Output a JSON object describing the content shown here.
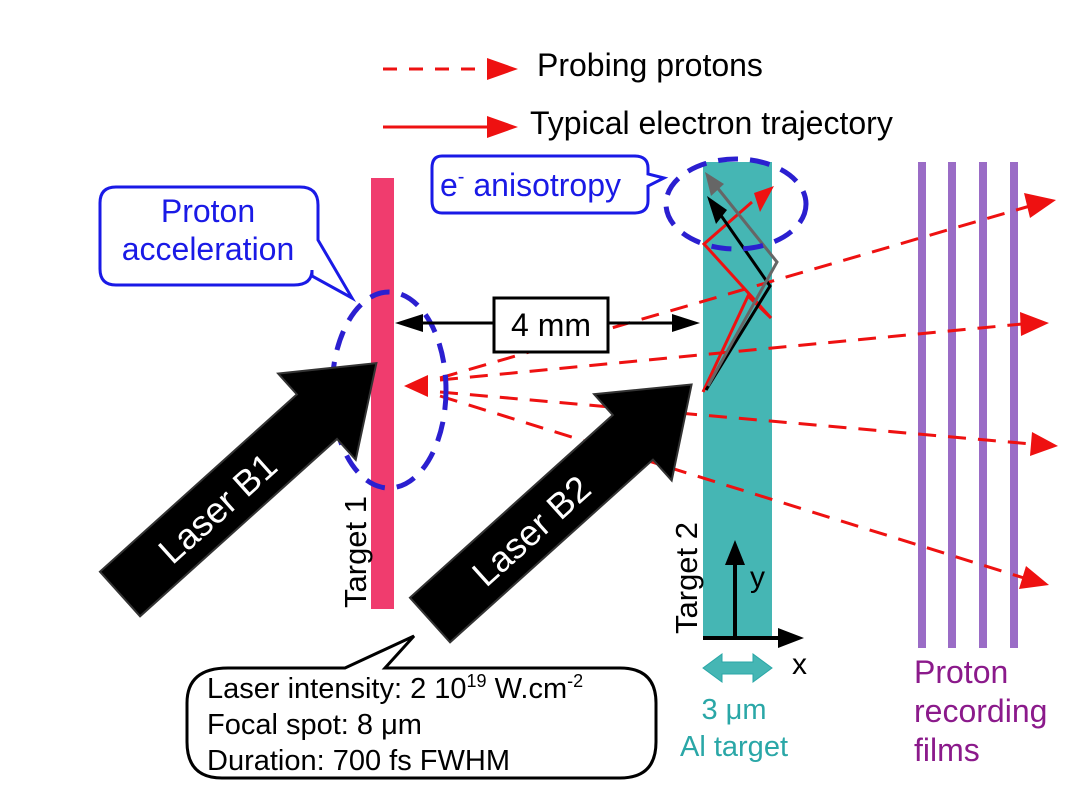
{
  "legend": {
    "probing_protons": "Probing protons",
    "electron_trajectory": "Typical electron trajectory"
  },
  "callouts": {
    "proton_acceleration_line1": "Proton",
    "proton_acceleration_line2": "acceleration",
    "e_anisotropy_base": "e",
    "e_anisotropy_sup": "-",
    "e_anisotropy_rest": " anisotropy"
  },
  "distance_label": "4 mm",
  "targets": {
    "target1": "Target 1",
    "target2": "Target 2"
  },
  "lasers": {
    "b1": "Laser B1",
    "b2": "Laser B2"
  },
  "axes": {
    "x": "x",
    "y": "y"
  },
  "thickness": {
    "line1": "3 μm",
    "line2": "Al target"
  },
  "films": {
    "line1": "Proton",
    "line2": "recording",
    "line3": "films"
  },
  "laser_params": {
    "intensity_prefix": "Laser intensity: 2 10",
    "intensity_exp": "19",
    "intensity_unit": " W.cm",
    "intensity_unit_exp": "-2",
    "focal_spot": "Focal spot: 8 μm",
    "duration": "Duration: 700 fs FWHM"
  },
  "colors": {
    "proton_red": "#ee1111",
    "target1": "#f03c6e",
    "target2": "#45b6b4",
    "dashed_blue": "#2b1fd0",
    "callout_blue": "#1a1ae6",
    "films": "#9a6cc6",
    "films_text": "#8b1a8b",
    "thickness_text": "#2aa7a7"
  }
}
